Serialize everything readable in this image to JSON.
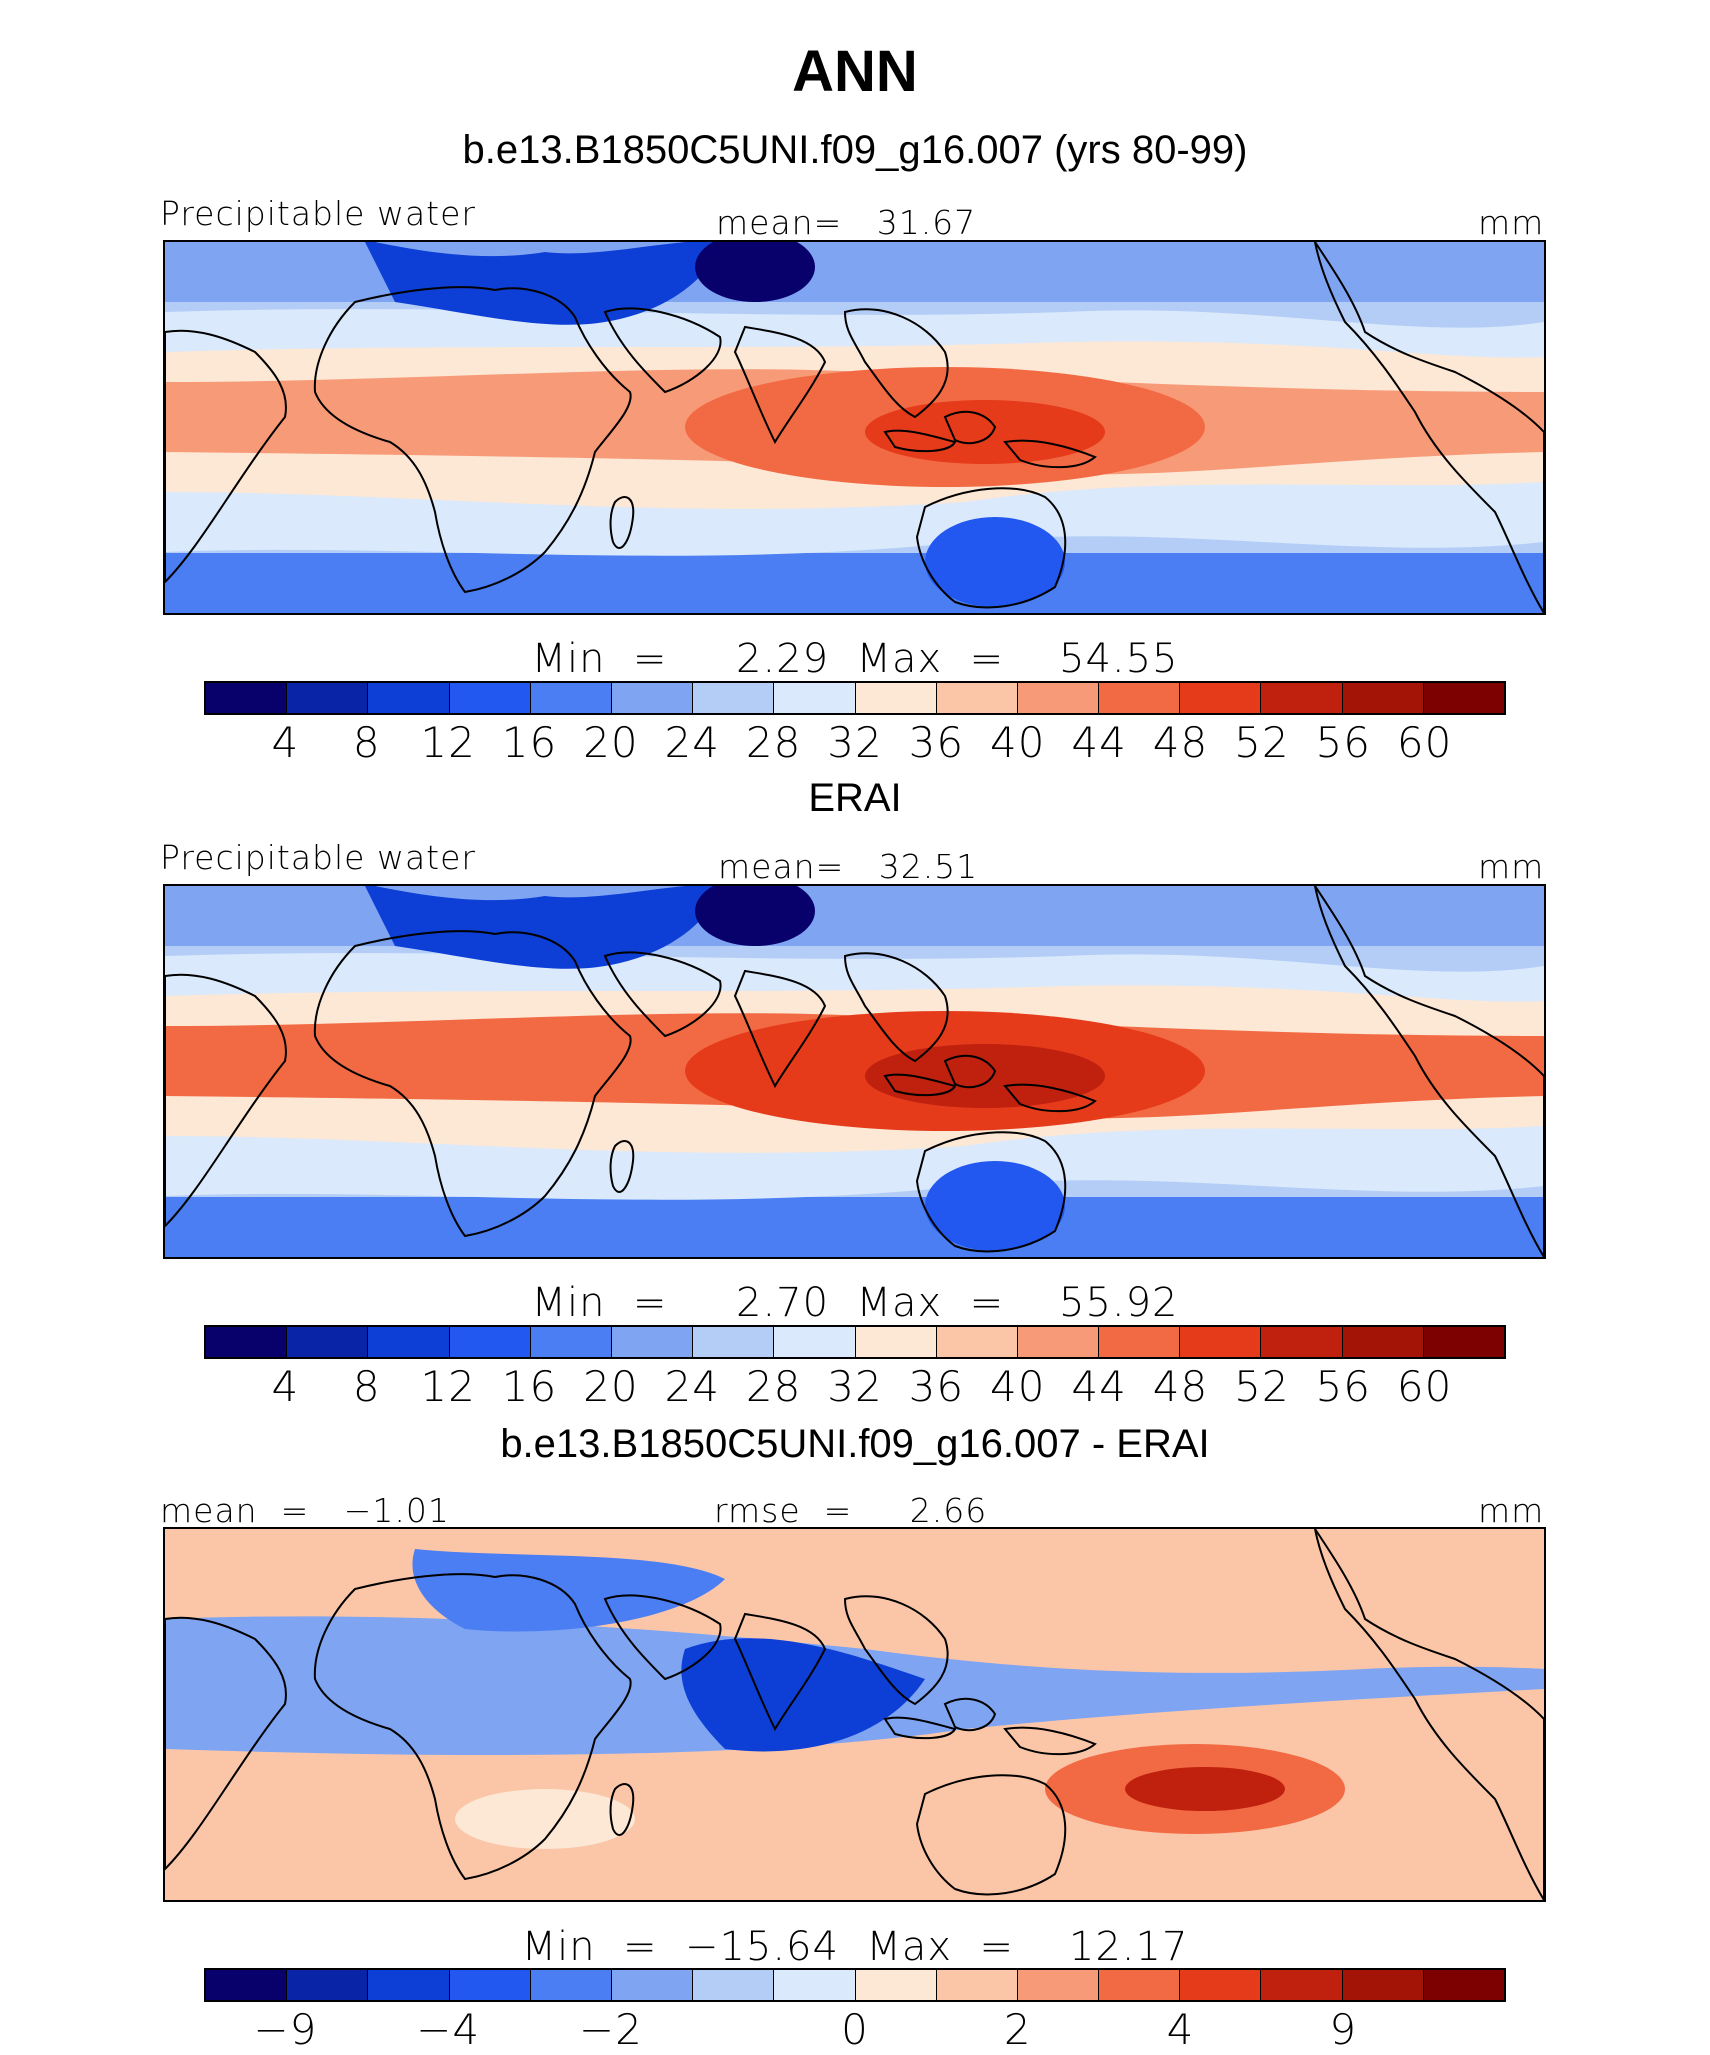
{
  "figure": {
    "title": "ANN",
    "colors": {
      "palette": [
        "#08006b",
        "#0a24a8",
        "#0d3fd6",
        "#2257f0",
        "#4a7ef2",
        "#7ea4f2",
        "#b3cdf7",
        "#dae9fb",
        "#fde7d5",
        "#fbc6a8",
        "#f79a77",
        "#f26a43",
        "#e53b1b",
        "#c0200e",
        "#a31407",
        "#7d0101"
      ],
      "coastline": "#000000",
      "ocean_background": "#f6b89a"
    }
  },
  "panels": [
    {
      "title": "b.e13.B1850C5UNI.f09_g16.007 (yrs 80-99)",
      "left_label": "Precipitable water",
      "center_label": "mean=   31.67",
      "right_label": "mm",
      "minmax": "Min  =     2.29  Max  =    54.55",
      "colorbar_ticks": [
        "4",
        "8",
        "12",
        "16",
        "20",
        "24",
        "28",
        "32",
        "36",
        "40",
        "44",
        "48",
        "52",
        "56",
        "60"
      ],
      "map": {
        "variable": "Precipitable water",
        "units": "mm",
        "kind": "field",
        "peak": "warm-pool"
      }
    },
    {
      "title": "ERAI",
      "left_label": "Precipitable water",
      "center_label": "mean=   32.51",
      "right_label": "mm",
      "minmax": "Min  =     2.70  Max  =    55.92",
      "colorbar_ticks": [
        "4",
        "8",
        "12",
        "16",
        "20",
        "24",
        "28",
        "32",
        "36",
        "40",
        "44",
        "48",
        "52",
        "56",
        "60"
      ],
      "map": {
        "variable": "Precipitable water",
        "units": "mm",
        "kind": "field",
        "peak": "warm-pool"
      }
    },
    {
      "title": "b.e13.B1850C5UNI.f09_g16.007 - ERAI",
      "left_label": "mean  =   −1.01",
      "center_label": "rmse  =     2.66",
      "right_label": "mm",
      "minmax": "Min  =  −15.64  Max  =    12.17",
      "colorbar_ticks": [
        "−9",
        "",
        "−4",
        "",
        "−2",
        "",
        "0",
        "",
        "2",
        "",
        "4",
        "",
        "9"
      ],
      "map": {
        "variable": "Precipitable water difference",
        "units": "mm",
        "kind": "difference"
      }
    }
  ]
}
